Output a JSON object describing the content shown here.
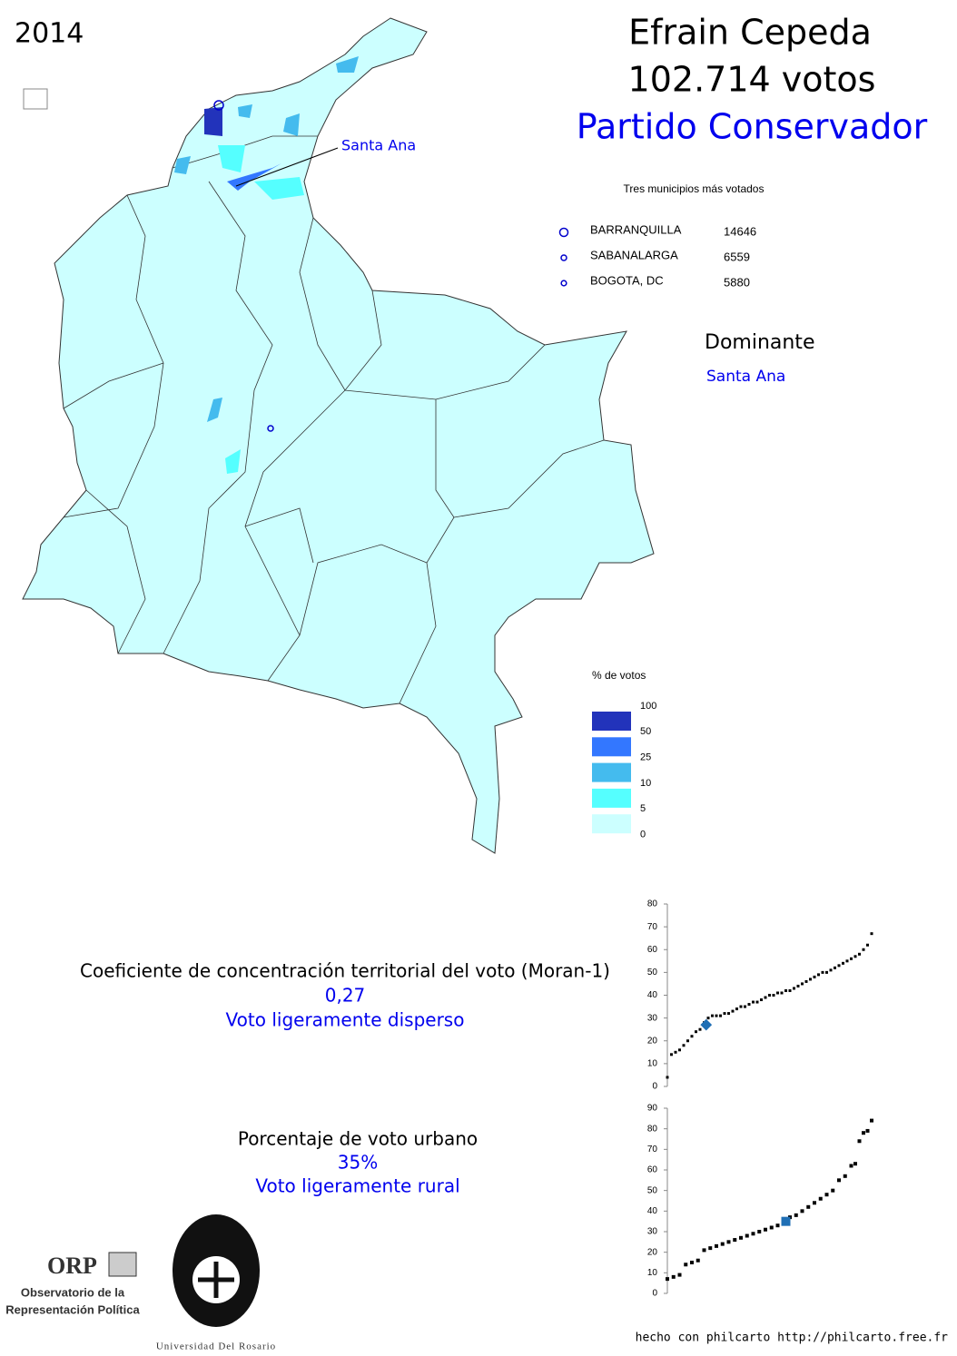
{
  "year": "2014",
  "header": {
    "candidate": "Efrain Cepeda",
    "votes": "102.714 votos",
    "party": "Partido Conservador"
  },
  "map": {
    "annotation": "Santa Ana"
  },
  "top_municipalities": {
    "title": "Tres municipios más votados",
    "rows": [
      {
        "name": "BARRANQUILLA",
        "votes": 14646
      },
      {
        "name": "SABANALARGA",
        "votes": 6559
      },
      {
        "name": "BOGOTA, DC",
        "votes": 5880
      }
    ]
  },
  "dominant": {
    "title": "Dominante",
    "value": "Santa Ana"
  },
  "legend": {
    "title": "% de votos",
    "breaks": [
      100,
      50,
      25,
      10,
      5,
      0
    ],
    "colors": [
      "#2233bb",
      "#3377ff",
      "#44bbee",
      "#55ffff",
      "#ccffff"
    ]
  },
  "moran": {
    "label": "Coeficiente de concentración territorial del voto (Moran-1)",
    "value": "0,27",
    "verdict": "Voto ligeramente disperso"
  },
  "urban": {
    "label": "Porcentaje de voto urbano",
    "value": "35%",
    "verdict": "Voto ligeramente rural"
  },
  "logos": {
    "orp": "ORP",
    "orp_line1": "Observatorio de la",
    "orp_line2": "Representación Política",
    "university": "Universidad Del Rosario"
  },
  "footer": "hecho con philcarto http://philcarto.free.fr",
  "chart_data": [
    {
      "type": "scatter",
      "xlim": [
        0,
        100
      ],
      "ylim": [
        0,
        80
      ],
      "yticks": [
        0,
        10,
        20,
        30,
        40,
        50,
        60,
        70,
        80
      ],
      "series": [
        {
          "color": "#000000",
          "marker": "square",
          "x": [
            0,
            2,
            4,
            6,
            8,
            10,
            12,
            14,
            16,
            18,
            20,
            22,
            24,
            26,
            28,
            30,
            32,
            34,
            36,
            38,
            40,
            42,
            44,
            46,
            48,
            50,
            52,
            54,
            56,
            58,
            60,
            62,
            64,
            66,
            68,
            70,
            72,
            74,
            76,
            78,
            80,
            82,
            84,
            86,
            88,
            90,
            92,
            94,
            96,
            98,
            100
          ],
          "values": [
            4,
            14,
            15,
            16,
            18,
            20,
            22,
            24,
            25,
            28,
            30,
            31,
            31,
            31,
            32,
            32,
            33,
            34,
            35,
            35,
            36,
            37,
            37,
            38,
            39,
            40,
            40,
            41,
            41,
            42,
            42,
            43,
            44,
            45,
            46,
            47,
            48,
            49,
            50,
            50,
            51,
            52,
            53,
            54,
            55,
            56,
            57,
            58,
            60,
            62,
            67
          ]
        },
        {
          "color": "#1f6fb5",
          "marker": "diamond",
          "x": [
            19
          ],
          "values": [
            27
          ]
        }
      ]
    },
    {
      "type": "scatter",
      "xlim": [
        0,
        100
      ],
      "ylim": [
        0,
        90
      ],
      "yticks": [
        0,
        10,
        20,
        30,
        40,
        50,
        60,
        70,
        80,
        90
      ],
      "series": [
        {
          "color": "#000000",
          "marker": "square",
          "x": [
            0,
            3,
            6,
            9,
            12,
            15,
            18,
            21,
            24,
            27,
            30,
            33,
            36,
            39,
            42,
            45,
            48,
            51,
            54,
            57,
            60,
            63,
            66,
            69,
            72,
            75,
            78,
            81,
            84,
            87,
            90,
            92,
            94,
            96,
            98,
            100
          ],
          "values": [
            7,
            8,
            9,
            14,
            15,
            16,
            21,
            22,
            23,
            24,
            25,
            26,
            27,
            28,
            29,
            30,
            31,
            32,
            33,
            35,
            37,
            38,
            40,
            42,
            44,
            46,
            48,
            50,
            55,
            57,
            62,
            63,
            74,
            78,
            79,
            84
          ]
        },
        {
          "color": "#1f6fb5",
          "marker": "square",
          "x": [
            58
          ],
          "values": [
            35
          ]
        }
      ]
    }
  ]
}
